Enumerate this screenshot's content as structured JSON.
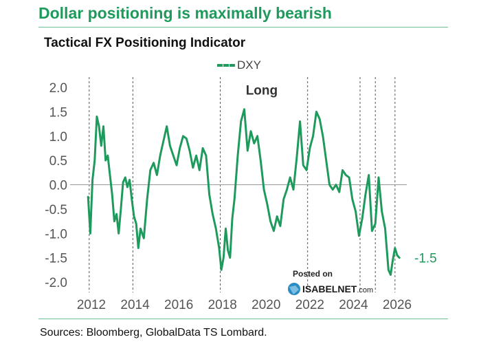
{
  "headline": "Dollar positioning is maximally bearish",
  "source": "Sources: Bloomberg, GlobalData TS Lombard.",
  "watermark": {
    "posted": "Posted on",
    "brand": "ISABELNET",
    "tld": ".com"
  },
  "colors": {
    "headline": "#1e9a5c",
    "series": "#1e9a5c",
    "rule": "#6fbf95",
    "zero_line": "#999999",
    "event_line": "#555555",
    "tick_text": "#555555"
  },
  "chart_data": {
    "type": "line",
    "title": "Tactical FX Positioning Indicator",
    "xlabel": "",
    "ylabel": "",
    "ylim": [
      -2.2,
      2.2
    ],
    "xlim": [
      2011.6,
      2026.5
    ],
    "yticks": [
      2.0,
      1.5,
      1.0,
      0.5,
      0.0,
      -0.5,
      -1.0,
      -1.5,
      -2.0
    ],
    "ytick_labels": [
      "2.0",
      "1.5",
      "1.0",
      "0.5",
      "0.0",
      "-0.5",
      "-1.0",
      "-1.5",
      "-2.0"
    ],
    "xticks": [
      2012,
      2014,
      2016,
      2018,
      2020,
      2022,
      2024,
      2026
    ],
    "xtick_labels": [
      "2012",
      "2014",
      "2016",
      "2018",
      "2020",
      "2022",
      "2024",
      "2026"
    ],
    "zero_line": 0,
    "vertical_lines": [
      2011.9,
      2013.9,
      2017.9,
      2021.9,
      2024.3,
      2025.0,
      2025.9
    ],
    "annotations": [
      {
        "text": "Long",
        "x": 2019.8,
        "y": 1.95
      },
      {
        "text": "-1.5",
        "x": 2026.35,
        "y": -1.5
      }
    ],
    "series": [
      {
        "name": "DXY",
        "x": [
          2011.85,
          2011.95,
          2012.05,
          2012.15,
          2012.25,
          2012.35,
          2012.45,
          2012.55,
          2012.65,
          2012.75,
          2012.85,
          2012.95,
          2013.05,
          2013.15,
          2013.25,
          2013.35,
          2013.45,
          2013.55,
          2013.65,
          2013.75,
          2013.85,
          2013.95,
          2014.05,
          2014.15,
          2014.25,
          2014.4,
          2014.55,
          2014.7,
          2014.85,
          2015.0,
          2015.15,
          2015.3,
          2015.45,
          2015.6,
          2015.75,
          2015.9,
          2016.05,
          2016.2,
          2016.35,
          2016.5,
          2016.65,
          2016.8,
          2016.95,
          2017.1,
          2017.25,
          2017.4,
          2017.55,
          2017.7,
          2017.85,
          2017.95,
          2018.05,
          2018.15,
          2018.25,
          2018.35,
          2018.45,
          2018.55,
          2018.7,
          2018.85,
          2019.0,
          2019.15,
          2019.3,
          2019.45,
          2019.6,
          2019.75,
          2019.9,
          2020.05,
          2020.2,
          2020.35,
          2020.5,
          2020.65,
          2020.8,
          2020.95,
          2021.1,
          2021.25,
          2021.4,
          2021.55,
          2021.7,
          2021.85,
          2022.0,
          2022.15,
          2022.3,
          2022.45,
          2022.6,
          2022.75,
          2022.9,
          2023.05,
          2023.2,
          2023.35,
          2023.5,
          2023.65,
          2023.8,
          2023.95,
          2024.1,
          2024.25,
          2024.4,
          2024.55,
          2024.7,
          2024.85,
          2025.0,
          2025.15,
          2025.3,
          2025.45,
          2025.6,
          2025.7,
          2025.8,
          2025.9,
          2026.0,
          2026.1
        ],
        "values": [
          -0.25,
          -1.0,
          0.1,
          0.5,
          1.4,
          1.2,
          0.8,
          1.2,
          0.5,
          0.6,
          0.2,
          -0.2,
          -0.75,
          -0.6,
          -1.0,
          -0.5,
          0.05,
          0.15,
          -0.05,
          0.1,
          -0.3,
          -0.65,
          -0.8,
          -1.3,
          -0.9,
          -1.1,
          -0.3,
          0.3,
          0.45,
          0.2,
          0.6,
          0.9,
          1.2,
          0.8,
          0.6,
          0.4,
          0.75,
          1.0,
          0.95,
          0.7,
          0.35,
          0.6,
          0.3,
          0.75,
          0.6,
          -0.2,
          -0.6,
          -0.9,
          -1.3,
          -1.75,
          -1.5,
          -0.9,
          -1.35,
          -1.5,
          -0.7,
          -0.3,
          0.6,
          1.3,
          1.55,
          0.7,
          1.1,
          0.85,
          1.0,
          0.5,
          -0.1,
          -0.4,
          -0.75,
          -0.95,
          -0.65,
          -0.85,
          -0.3,
          -0.1,
          0.15,
          -0.1,
          0.55,
          1.3,
          0.4,
          0.3,
          0.75,
          1.0,
          1.5,
          1.35,
          1.0,
          0.5,
          0.0,
          -0.1,
          0.0,
          -0.15,
          0.3,
          0.2,
          0.15,
          -0.3,
          -0.55,
          -1.05,
          -0.7,
          -0.2,
          0.2,
          -0.95,
          -0.8,
          0.15,
          -0.55,
          -0.9,
          -1.75,
          -1.85,
          -1.55,
          -1.3,
          -1.45,
          -1.5
        ]
      }
    ]
  }
}
